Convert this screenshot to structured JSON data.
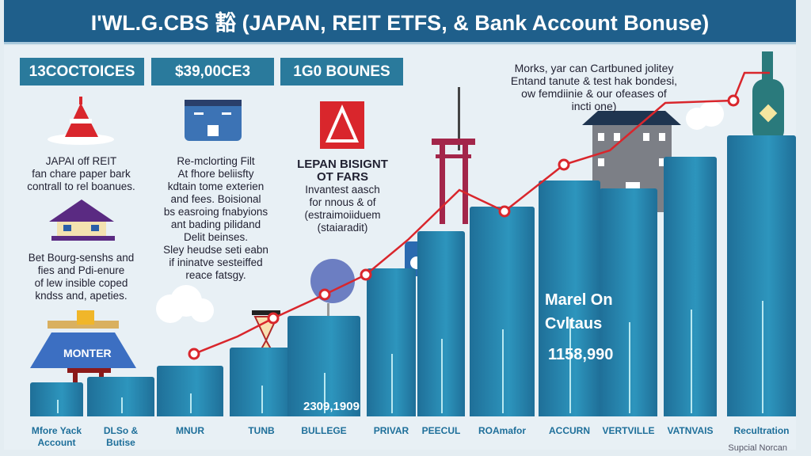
{
  "title": "I'WL.G.CBS 豁 (JAPAN, REIT ETFS, & Bank Account Bonuse)",
  "stats": [
    "13COCTOICES",
    "$39,00CE3",
    "1G0 BOUNES"
  ],
  "col1": {
    "text1": [
      "JAPAI off REIT",
      "fan chare paper bark",
      "contrall to rel boanues."
    ],
    "text2": [
      "Bet Bourg-senshs and",
      "fies and Pdi-enure",
      "of lew insible coped",
      "kndss and, apeties."
    ]
  },
  "col2": {
    "text": [
      "Re-mclorting Filt",
      "At fhore beliisfty",
      "kdtain tome exterien",
      "and fees. Boisional",
      "bs easroing fnabyions",
      "ant bading pilidand",
      "Delit beinses.",
      "Sley heudse seti eabn",
      "if ininatve sesteiffed",
      "reace fatsgy."
    ]
  },
  "col3": {
    "heading": [
      "LEPAN BISIGNT",
      "OT FARS"
    ],
    "text": [
      "Invantest aasch",
      "for nnous & of",
      "(estraimoiiduem",
      "(staiaradit)"
    ]
  },
  "note": [
    "Morks, yar can Cartbuned jolitey",
    "Entand tanute & test hak bondesi,",
    "ow femdiinie & our ofeases of",
    "incti one)"
  ],
  "monter_label": "MONTER",
  "overlay": {
    "line1": "Marel On",
    "line2": "Cvltaus",
    "value": "1158,990",
    "value2": "2309,1909"
  },
  "bars": [
    {
      "label": [
        "Mfore Yack",
        "Account"
      ],
      "level": 0.07
    },
    {
      "label": [
        "DLSo &",
        "Butise"
      ],
      "level": 0.09
    },
    {
      "label": [
        "MNUR"
      ],
      "level": 0.13
    },
    {
      "label": [
        "TUNB"
      ],
      "level": 0.2
    },
    {
      "label": [
        "BULLEGE"
      ],
      "level": 0.32
    },
    {
      "label": [
        "PRIVAR"
      ],
      "level": 0.5
    },
    {
      "label": [
        "PEECUL"
      ],
      "level": 0.64
    },
    {
      "label": [
        "ROAmafor"
      ],
      "level": 0.73
    },
    {
      "label": [
        "ACCURN"
      ],
      "level": 0.83
    },
    {
      "label": [
        "VERTVILLE"
      ],
      "level": 0.8
    },
    {
      "label": [
        "VATNVAIS"
      ],
      "level": 0.92
    },
    {
      "label": [
        "Recultration"
      ],
      "level": 1.0
    }
  ],
  "footer": "Supcial Norcan",
  "colors": {
    "header": "#1f5f8b",
    "stat": "#2a7a9c",
    "bar": "#2d95bd",
    "line": "#d9262c"
  }
}
